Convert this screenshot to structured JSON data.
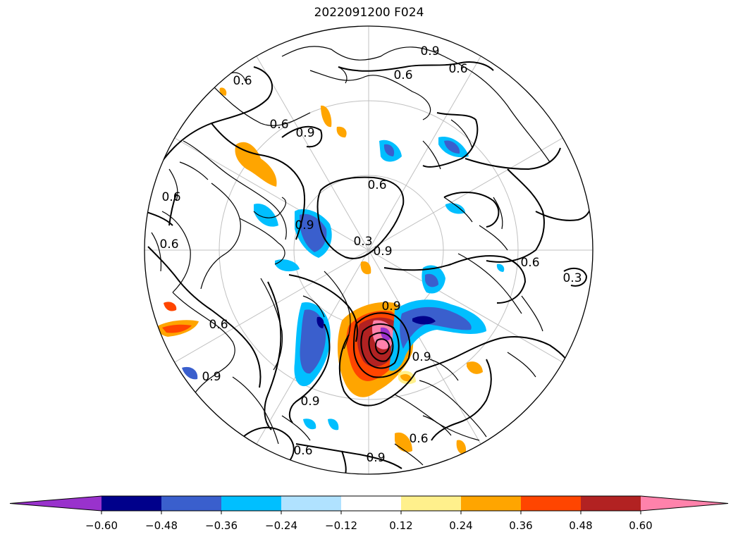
{
  "title": "2022091200 F024",
  "contour_labels": [
    "0.6",
    "0.6",
    "0.6",
    "0.6",
    "0.6",
    "0.6",
    "0.6",
    "0.6",
    "0.6",
    "0.9",
    "0.9",
    "0.9",
    "0.9",
    "0.9",
    "0.9",
    "0.9",
    "0.3",
    "0.3",
    "0.9",
    "0.6",
    "0.6",
    "0.9"
  ],
  "colorbar": {
    "ticks": [
      "−0.60",
      "−0.48",
      "−0.36",
      "−0.24",
      "−0.12",
      "0.12",
      "0.24",
      "0.36",
      "0.48",
      "0.60"
    ],
    "colors": [
      "#9932cc",
      "#00008b",
      "#3a5fcd",
      "#00bfff",
      "#b0e2ff",
      "#ffffff",
      "#fff08c",
      "#ffa500",
      "#ff4500",
      "#b22222",
      "#ff82ab"
    ],
    "extend": "both"
  },
  "colors": {
    "background": "#ffffff",
    "graticule": "#c0c0c0",
    "coastline": "#000000"
  }
}
